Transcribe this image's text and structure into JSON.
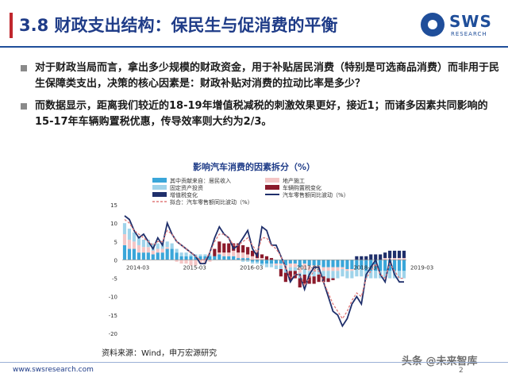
{
  "slide": {
    "title": "3.8 财政支出结构：保民生与促消费的平衡",
    "logo_text": "SWS",
    "logo_sub": "RESEARCH",
    "bullets": [
      "对于财政当局而言，拿出多少规模的财政资金，用于补贴居民消费（特别是可选商品消费）而非用于民生保障类支出，决策的核心因素是：财政补贴对消费的拉动比率是多少？",
      "而数据显示，距离我们较近的18-19年增值税减税的刺激效果更好，接近1；而诸多因素共同影响的15-17年车辆购置税优惠，传导效率则大约为2/3。"
    ],
    "source": "资料来源：Wind，申万宏源研究",
    "footer_url": "www.swsresearch.com",
    "page_number": "2",
    "watermark": "头条 @未来智库"
  },
  "chart_data": {
    "type": "bar",
    "title": "影响汽车消费的因素拆分（%）",
    "x_tick_labels": [
      "2014-03",
      "2015-03",
      "2016-03",
      "2017-03",
      "2018-03",
      "2019-03"
    ],
    "ylim": [
      -20,
      15
    ],
    "yticks": [
      15,
      10,
      5,
      0,
      -5,
      -10,
      -15,
      -20
    ],
    "legend": [
      "其中贡献来自：居民收入",
      "地产施工",
      "固定资产投资",
      "车辆购置税变化",
      "增值税变化",
      "汽车零售额同比波动（%）",
      "拟合：汽车零售额同比波动（%）"
    ],
    "series": [
      {
        "name": "其中贡献来自：居民收入",
        "kind": "bar",
        "color": "#3aa6d9",
        "values": [
          4,
          3,
          3,
          2,
          2,
          2,
          1.5,
          2,
          2,
          3,
          3,
          2,
          1,
          1,
          1,
          1,
          1,
          1,
          1,
          1,
          1.5,
          1,
          1,
          1,
          0.5,
          0.5,
          0.5,
          -0.5,
          -0.5,
          -1,
          -1,
          -1,
          -1,
          -1,
          -1.5,
          -1,
          -1,
          -2,
          -1,
          -1.5,
          -1.5,
          -1.5,
          -2,
          -2,
          -2,
          -2,
          -2,
          -2.5,
          -2.5,
          -2.5,
          -2.5,
          -3,
          -3,
          -3,
          -3,
          -3,
          -3,
          -3,
          -3,
          -3
        ]
      },
      {
        "name": "地产施工",
        "kind": "bar",
        "color": "#f4c6c6",
        "values": [
          3,
          2.5,
          2,
          2,
          1.5,
          1.5,
          1,
          1,
          1,
          0.5,
          0,
          -0.5,
          -1,
          -1,
          -1.5,
          -1.5,
          -1,
          -1,
          -0.5,
          0,
          0.5,
          1,
          1,
          1.5,
          1.5,
          1.5,
          1,
          1,
          0.5,
          0.5,
          0,
          0,
          -0.5,
          -0.5,
          -1,
          -1,
          -1,
          -1.5,
          -1.5,
          -1.5,
          -1.5,
          -1,
          -1,
          -1,
          -1,
          -1,
          -0.5,
          -0.5,
          -0.5,
          0,
          0,
          0,
          0,
          0,
          0,
          0.5,
          0.5,
          0.5,
          0.5,
          0.5
        ]
      },
      {
        "name": "固定资产投资",
        "kind": "bar",
        "color": "#9fd3ea",
        "values": [
          3,
          3,
          2.5,
          2.5,
          2,
          2,
          2,
          1.5,
          1.5,
          1.5,
          1.5,
          1,
          1,
          1,
          0.5,
          0.5,
          0.5,
          0.5,
          0.5,
          0,
          0,
          0,
          0,
          0,
          0,
          -0.5,
          -0.5,
          -0.5,
          -0.5,
          -0.5,
          -1,
          -1,
          -1,
          -1,
          -1,
          -1,
          -1,
          -1.5,
          -1.5,
          -1.5,
          -1.5,
          -1.5,
          -1.5,
          -2,
          -2,
          -2,
          -2,
          -2,
          -2,
          -2,
          -2,
          -2,
          -2,
          -2,
          -2,
          -2,
          -2,
          -2,
          -2,
          -2
        ]
      },
      {
        "name": "车辆购置税变化",
        "kind": "bar",
        "color": "#8b1a2b",
        "values": [
          0,
          0,
          0,
          0,
          0,
          0,
          0,
          0,
          0,
          0,
          0,
          0,
          0,
          0,
          0,
          0,
          0,
          0,
          0,
          2,
          3,
          2.5,
          2.5,
          2,
          2.5,
          2,
          2,
          1.5,
          1.5,
          1,
          1,
          0.5,
          0,
          -2,
          -2.5,
          -2.5,
          -2,
          -2.5,
          -2.5,
          -2,
          -2,
          -2,
          -1.5,
          -1,
          -0.5,
          0,
          0,
          0,
          0,
          0,
          0,
          0,
          0,
          0,
          0,
          0,
          0,
          0,
          0,
          0
        ]
      },
      {
        "name": "增值税变化",
        "kind": "bar",
        "color": "#1f2f6b",
        "values": [
          0,
          0,
          0,
          0,
          0,
          0,
          0,
          0,
          0,
          0,
          0,
          0,
          0,
          0,
          0,
          0,
          0,
          0,
          0,
          0,
          0,
          0,
          0,
          0,
          0,
          0,
          0,
          0,
          0,
          0,
          0,
          0,
          0,
          0,
          0,
          0,
          0,
          0,
          0,
          0,
          0,
          0,
          0,
          0,
          0,
          0,
          0,
          0,
          0,
          1,
          1,
          1,
          1.5,
          1.5,
          1.5,
          1.5,
          2,
          2,
          2,
          2
        ]
      },
      {
        "name": "汽车零售额同比波动（%）",
        "kind": "line",
        "color": "#1f2f6b",
        "values": [
          12,
          11,
          8,
          6,
          7,
          5,
          3,
          6,
          4,
          10,
          7,
          5,
          4,
          3,
          2,
          1,
          -1,
          -1,
          2,
          6,
          9,
          7,
          6,
          3,
          4,
          6,
          8,
          3,
          1,
          9,
          8,
          4,
          4,
          1,
          -2,
          -6,
          -4,
          -4,
          -8,
          -4,
          -2,
          -2,
          -6,
          -10,
          -14,
          -15,
          -18,
          -16,
          -12,
          -10,
          -12,
          -4,
          -2,
          0,
          -4,
          -6,
          0,
          -4,
          -6,
          -6
        ]
      },
      {
        "name": "拟合：汽车零售额同比波动（%）",
        "kind": "dashed",
        "color": "#e07a7a",
        "values": [
          11,
          10,
          8,
          7,
          6,
          5,
          4,
          5,
          5,
          8,
          7,
          5,
          4,
          3,
          2,
          1,
          0,
          0,
          2,
          5,
          7,
          7,
          6,
          4,
          4,
          5,
          6,
          4,
          2,
          6,
          6,
          4,
          3,
          1,
          -2,
          -5,
          -4,
          -4,
          -7,
          -5,
          -3,
          -3,
          -6,
          -9,
          -12,
          -14,
          -16,
          -14,
          -11,
          -9,
          -10,
          -5,
          -3,
          -1,
          -4,
          -5,
          -1,
          -3,
          -5,
          -5
        ]
      }
    ]
  }
}
